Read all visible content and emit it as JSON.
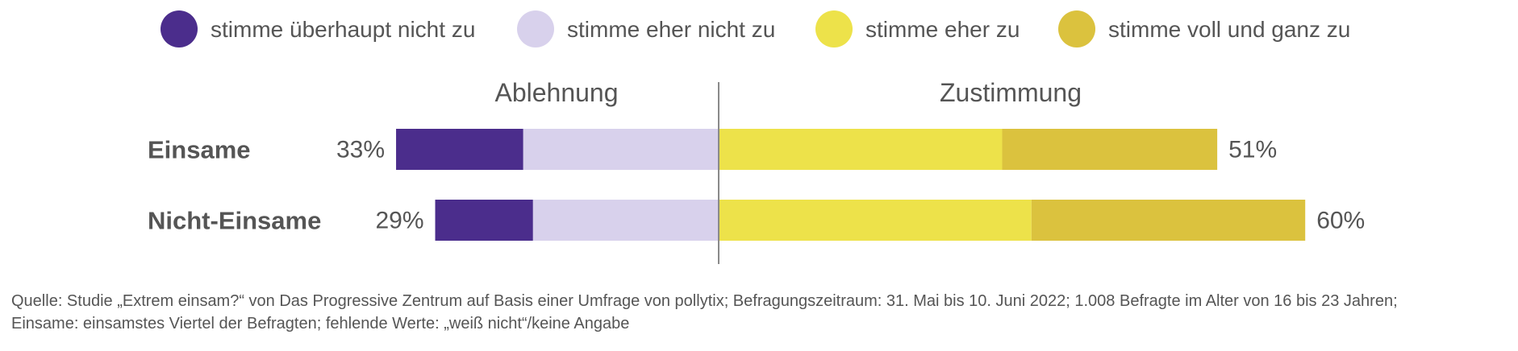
{
  "chart_data": {
    "type": "bar",
    "subtype": "diverging-stacked-horizontal",
    "legend": [
      {
        "label": "stimme überhaupt nicht zu",
        "color": "#4b2d8c"
      },
      {
        "label": "stimme eher nicht zu",
        "color": "#d8d1ec"
      },
      {
        "label": "stimme eher zu",
        "color": "#ede24a"
      },
      {
        "label": "stimme voll und ganz zu",
        "color": "#dbc23e"
      }
    ],
    "legend_position": "top",
    "side_titles": {
      "negative": "Ablehnung",
      "positive": "Zustimmung"
    },
    "categories": [
      "Einsame",
      "Nicht-Einsame"
    ],
    "series": [
      {
        "name": "stimme überhaupt nicht zu",
        "values": [
          13,
          10
        ],
        "direction": "negative"
      },
      {
        "name": "stimme eher nicht zu",
        "values": [
          20,
          19
        ],
        "direction": "negative"
      },
      {
        "name": "stimme eher zu",
        "values": [
          29,
          32
        ],
        "direction": "positive"
      },
      {
        "name": "stimme voll und ganz zu",
        "values": [
          22,
          28
        ],
        "direction": "positive"
      }
    ],
    "totals_negative": [
      "33%",
      "29%"
    ],
    "totals_positive": [
      "51%",
      "60%"
    ],
    "grid": false
  },
  "source_note": [
    "Quelle: Studie „Extrem einsam?“ von Das Progressive Zentrum auf Basis einer Umfrage von pollytix; Befragungszeitraum: 31. Mai bis 10. Juni 2022; 1.008 Befragte im Alter von 16 bis 23 Jahren;",
    "Einsame: einsamstes Viertel der Befragten; fehlende Werte: „weiß nicht“/keine Angabe"
  ]
}
